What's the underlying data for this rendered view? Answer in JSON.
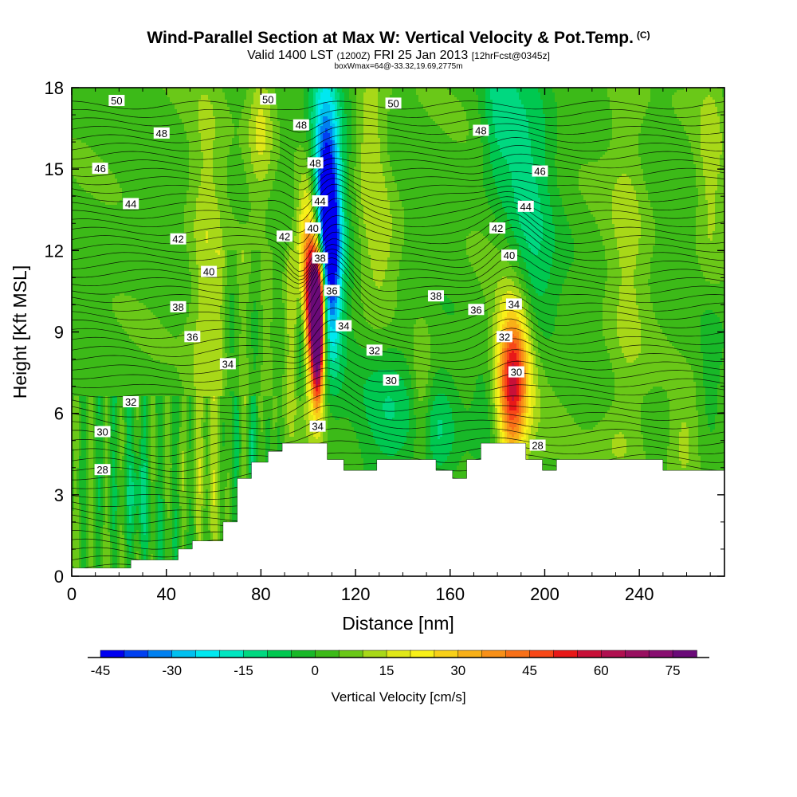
{
  "header": {
    "title": "Wind-Parallel Section at Max W: Vertical Velocity & Pot.Temp.",
    "title_tag": "(C)",
    "valid_prefix": "Valid 1400 LST",
    "valid_utc": "(1200Z)",
    "valid_date": "FRI 25 Jan 2013",
    "forecast": "[12hrFcst@0345z]",
    "box_info": "boxWmax=64@-33.32,19.69,2775m"
  },
  "chart_data": {
    "type": "contour",
    "xlabel": "Distance [nm]",
    "ylabel": "Height [Kft MSL]",
    "xlim": [
      0,
      276
    ],
    "ylim": [
      0,
      18
    ],
    "xticks": [
      0,
      40,
      80,
      120,
      160,
      200,
      240
    ],
    "yticks": [
      0,
      3,
      6,
      9,
      12,
      15,
      18
    ],
    "colorbar": {
      "label": "Vertical Velocity [cm/s]",
      "ticks": [
        -45,
        -30,
        -15,
        0,
        15,
        30,
        45,
        60,
        75
      ],
      "range": [
        -45,
        80
      ],
      "step": 5,
      "colors": [
        "#0000f0",
        "#0040f0",
        "#0080f0",
        "#00c0f0",
        "#00e8f0",
        "#00e6c0",
        "#00d880",
        "#00c850",
        "#18b828",
        "#3cba18",
        "#6ac818",
        "#a8d818",
        "#e0e818",
        "#f8f018",
        "#f8d018",
        "#f8b018",
        "#f89018",
        "#f87018",
        "#f84818",
        "#e81818",
        "#c81038",
        "#b01050",
        "#981060",
        "#880e70",
        "#6a0a78"
      ]
    },
    "terrain": [
      [
        0,
        0.3
      ],
      [
        25,
        0.3
      ],
      [
        25,
        0.6
      ],
      [
        45,
        0.6
      ],
      [
        45,
        1.0
      ],
      [
        51,
        1.0
      ],
      [
        51,
        1.3
      ],
      [
        64,
        1.3
      ],
      [
        64,
        2.0
      ],
      [
        70,
        2.0
      ],
      [
        70,
        3.6
      ],
      [
        76,
        3.6
      ],
      [
        76,
        4.2
      ],
      [
        83,
        4.2
      ],
      [
        83,
        4.6
      ],
      [
        89,
        4.6
      ],
      [
        89,
        4.9
      ],
      [
        108,
        4.9
      ],
      [
        108,
        4.3
      ],
      [
        115,
        4.3
      ],
      [
        115,
        3.9
      ],
      [
        129,
        3.9
      ],
      [
        129,
        4.3
      ],
      [
        154,
        4.3
      ],
      [
        154,
        3.9
      ],
      [
        161,
        3.9
      ],
      [
        161,
        3.6
      ],
      [
        167,
        3.6
      ],
      [
        167,
        4.3
      ],
      [
        173,
        4.3
      ],
      [
        173,
        4.9
      ],
      [
        192,
        4.9
      ],
      [
        192,
        4.3
      ],
      [
        199,
        4.3
      ],
      [
        199,
        3.9
      ],
      [
        205,
        3.9
      ],
      [
        205,
        4.3
      ],
      [
        250,
        4.3
      ],
      [
        250,
        3.9
      ],
      [
        276,
        3.9
      ]
    ],
    "theta_labels": [
      {
        "text": "50",
        "x": 19,
        "y": 17.5
      },
      {
        "text": "50",
        "x": 83,
        "y": 17.55
      },
      {
        "text": "50",
        "x": 136,
        "y": 17.4
      },
      {
        "text": "48",
        "x": 38,
        "y": 16.3
      },
      {
        "text": "48",
        "x": 97,
        "y": 16.6
      },
      {
        "text": "48",
        "x": 173,
        "y": 16.4
      },
      {
        "text": "48",
        "x": 103,
        "y": 15.2
      },
      {
        "text": "46",
        "x": 12,
        "y": 15.0
      },
      {
        "text": "46",
        "x": 198,
        "y": 14.9
      },
      {
        "text": "44",
        "x": 25,
        "y": 13.7
      },
      {
        "text": "44",
        "x": 105,
        "y": 13.8
      },
      {
        "text": "44",
        "x": 192,
        "y": 13.6
      },
      {
        "text": "42",
        "x": 45,
        "y": 12.4
      },
      {
        "text": "42",
        "x": 90,
        "y": 12.5
      },
      {
        "text": "42",
        "x": 180,
        "y": 12.8
      },
      {
        "text": "40",
        "x": 102,
        "y": 12.8
      },
      {
        "text": "40",
        "x": 58,
        "y": 11.2
      },
      {
        "text": "40",
        "x": 185,
        "y": 11.8
      },
      {
        "text": "38",
        "x": 105,
        "y": 11.7
      },
      {
        "text": "38",
        "x": 45,
        "y": 9.9
      },
      {
        "text": "38",
        "x": 154,
        "y": 10.3
      },
      {
        "text": "36",
        "x": 110,
        "y": 10.5
      },
      {
        "text": "36",
        "x": 51,
        "y": 8.8
      },
      {
        "text": "36",
        "x": 171,
        "y": 9.8
      },
      {
        "text": "34",
        "x": 115,
        "y": 9.2
      },
      {
        "text": "34",
        "x": 66,
        "y": 7.8
      },
      {
        "text": "34",
        "x": 187,
        "y": 10.0
      },
      {
        "text": "32",
        "x": 25,
        "y": 6.4
      },
      {
        "text": "32",
        "x": 128,
        "y": 8.3
      },
      {
        "text": "32",
        "x": 183,
        "y": 8.8
      },
      {
        "text": "30",
        "x": 13,
        "y": 5.3
      },
      {
        "text": "30",
        "x": 135,
        "y": 7.2
      },
      {
        "text": "30",
        "x": 188,
        "y": 7.5
      },
      {
        "text": "28",
        "x": 13,
        "y": 3.9
      },
      {
        "text": "28",
        "x": 197,
        "y": 4.8
      },
      {
        "text": "34",
        "x": 104,
        "y": 5.5
      }
    ],
    "w_features": [
      {
        "x": 104,
        "y": 8.8,
        "sx": 1.8,
        "sy": 1.7,
        "amp": 75
      },
      {
        "x": 103,
        "y": 10.2,
        "sx": 2.4,
        "sy": 1.5,
        "amp": 55
      },
      {
        "x": 100,
        "y": 12.0,
        "sx": 3,
        "sy": 2.0,
        "amp": 32
      },
      {
        "x": 101,
        "y": 9.5,
        "sx": 6,
        "sy": 3.0,
        "amp": 14
      },
      {
        "x": 106,
        "y": 15.0,
        "sx": 4.5,
        "sy": 3.5,
        "amp": -24
      },
      {
        "x": 110,
        "y": 11.6,
        "sx": 3,
        "sy": 2.8,
        "amp": -34
      },
      {
        "x": 107,
        "y": 13.6,
        "sx": 3,
        "sy": 2.2,
        "amp": -20
      },
      {
        "x": 113,
        "y": 13.8,
        "sx": 6,
        "sy": 4.0,
        "amp": -9
      },
      {
        "x": 97,
        "y": 8.8,
        "sx": 1.4,
        "sy": 1.7,
        "amp": -20
      },
      {
        "x": 187,
        "y": 8.0,
        "sx": 5,
        "sy": 1.7,
        "amp": 36
      },
      {
        "x": 186,
        "y": 6.0,
        "sx": 4,
        "sy": 1.7,
        "amp": 22
      },
      {
        "x": 188,
        "y": 9.0,
        "sx": 9,
        "sy": 4.0,
        "amp": 9
      },
      {
        "x": 192,
        "y": 14.0,
        "sx": 8,
        "sy": 3.5,
        "amp": -17
      },
      {
        "x": 180,
        "y": 17.0,
        "sx": 5,
        "sy": 2.0,
        "amp": -12
      },
      {
        "x": 195,
        "y": 10.3,
        "sx": 7,
        "sy": 1.5,
        "amp": -9
      },
      {
        "x": 135,
        "y": 6.2,
        "sx": 9,
        "sy": 2.0,
        "amp": -12
      },
      {
        "x": 155,
        "y": 5.3,
        "sx": 6,
        "sy": 1.6,
        "amp": -13
      },
      {
        "x": 175,
        "y": 6.3,
        "sx": 4,
        "sy": 1.6,
        "amp": -8
      },
      {
        "x": 148,
        "y": 6.5,
        "sx": 3,
        "sy": 2.0,
        "amp": 11
      },
      {
        "x": 57,
        "y": 9.5,
        "sx": 5,
        "sy": 6,
        "amp": 12
      },
      {
        "x": 80,
        "y": 16.5,
        "sx": 4,
        "sy": 2.0,
        "amp": 14
      },
      {
        "x": 126,
        "y": 16.5,
        "sx": 5,
        "sy": 2.0,
        "amp": 12
      },
      {
        "x": 130,
        "y": 12.0,
        "sx": 6,
        "sy": 2.0,
        "amp": 9
      },
      {
        "x": 28,
        "y": 3.3,
        "sx": 3,
        "sy": 1.2,
        "amp": -11
      },
      {
        "x": 235,
        "y": 12.0,
        "sx": 6,
        "sy": 6,
        "amp": 8
      },
      {
        "x": 270,
        "y": 15.0,
        "sx": 4,
        "sy": 3,
        "amp": 9
      },
      {
        "x": 259,
        "y": 5.0,
        "sx": 4,
        "sy": 1.2,
        "amp": 8
      },
      {
        "x": 270,
        "y": 7.5,
        "sx": 3,
        "sy": 1.5,
        "amp": -7
      },
      {
        "x": 230,
        "y": 5.0,
        "sx": 6,
        "sy": 1.0,
        "amp": 5
      }
    ],
    "w_waves": [
      {
        "x0": 0,
        "x1": 88,
        "ymax": 6.6,
        "period": 6.5,
        "amp": 6,
        "base": -2
      },
      {
        "x0": 60,
        "x1": 96,
        "ymax": 12,
        "period": 10,
        "amp": 4,
        "base": 0
      }
    ]
  }
}
